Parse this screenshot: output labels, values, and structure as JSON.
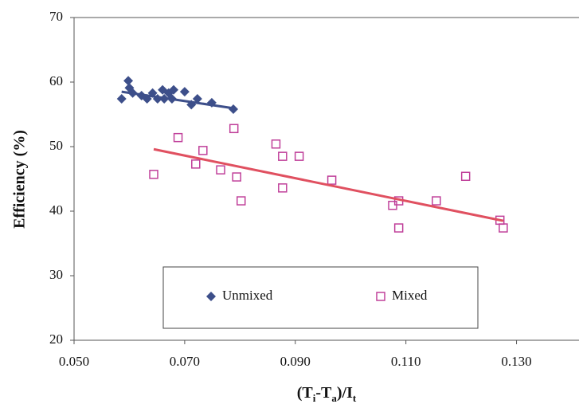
{
  "chart_data": {
    "type": "scatter",
    "y_label": "Efficiency (%)",
    "x_label_parts": [
      "(T",
      "i",
      "-T",
      "a",
      ")/I",
      "t"
    ],
    "xlim": [
      0.05,
      0.14
    ],
    "xticks": [
      {
        "value": 0.05,
        "label": "0.050"
      },
      {
        "value": 0.07,
        "label": "0.070"
      },
      {
        "value": 0.09,
        "label": "0.090"
      },
      {
        "value": 0.11,
        "label": "0.110"
      },
      {
        "value": 0.13,
        "label": "0.130"
      }
    ],
    "ylim": [
      20,
      70
    ],
    "yticks": [
      20,
      30,
      40,
      50,
      60,
      70
    ],
    "grid": false,
    "legend": "bottom-center",
    "series": [
      {
        "name": "Unmixed",
        "color": "#3d4f8a",
        "marker": "diamond",
        "trend_color": "#3d4f8a",
        "x": [
          0.0586,
          0.0598,
          0.06,
          0.0606,
          0.0622,
          0.0632,
          0.0642,
          0.0651,
          0.066,
          0.0663,
          0.0671,
          0.0677,
          0.068,
          0.07,
          0.0712,
          0.0723,
          0.0749,
          0.0788
        ],
        "values": [
          57.4,
          60.2,
          59.1,
          58.3,
          57.9,
          57.4,
          58.3,
          57.4,
          58.8,
          57.4,
          58.3,
          57.4,
          58.8,
          58.5,
          56.5,
          57.4,
          56.8,
          55.8
        ],
        "trend": {
          "x": [
            0.0586,
            0.0792
          ],
          "y": [
            58.5,
            55.9
          ]
        }
      },
      {
        "name": "Mixed",
        "color": "#c0409a",
        "marker": "square-open",
        "trend_color": "#e05060",
        "x": [
          0.0644,
          0.0688,
          0.072,
          0.0733,
          0.0765,
          0.0789,
          0.0794,
          0.0802,
          0.0865,
          0.0877,
          0.0877,
          0.0907,
          0.0966,
          0.1076,
          0.1087,
          0.1087,
          0.1155,
          0.1208,
          0.127,
          0.1276
        ],
        "values": [
          45.7,
          51.4,
          47.3,
          49.4,
          46.4,
          52.8,
          45.3,
          41.6,
          50.4,
          48.5,
          43.6,
          48.5,
          44.8,
          40.9,
          41.6,
          37.4,
          41.6,
          45.4,
          38.6,
          37.4
        ],
        "trend": {
          "x": [
            0.0644,
            0.1276
          ],
          "y": [
            49.6,
            38.5
          ]
        }
      }
    ]
  }
}
